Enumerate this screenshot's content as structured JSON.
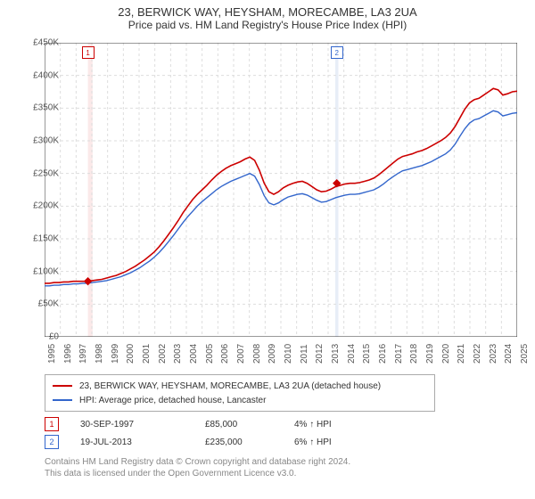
{
  "title": "23, BERWICK WAY, HEYSHAM, MORECAMBE, LA3 2UA",
  "subtitle": "Price paid vs. HM Land Registry's House Price Index (HPI)",
  "chart": {
    "type": "line",
    "background_color": "#ffffff",
    "grid_color": "#dddddd",
    "axis_color": "#333333",
    "ylim": [
      0,
      450000
    ],
    "ytick_step": 50000,
    "ytick_prefix": "£",
    "ytick_suffix": "K",
    "ytick_divisor": 1000,
    "x_years": [
      1995,
      1996,
      1997,
      1998,
      1999,
      2000,
      2001,
      2002,
      2003,
      2004,
      2005,
      2006,
      2007,
      2008,
      2009,
      2010,
      2011,
      2012,
      2013,
      2014,
      2015,
      2016,
      2017,
      2018,
      2019,
      2020,
      2021,
      2022,
      2023,
      2024,
      2025
    ],
    "highlight_bands": [
      {
        "from_year": 1997.75,
        "to_year": 1998.05,
        "color": "#fbe9e9"
      },
      {
        "from_year": 2013.45,
        "to_year": 2013.65,
        "color": "#e8eef7"
      }
    ],
    "marker_badges": [
      {
        "label": "1",
        "year": 1997.75,
        "color": "#cc0000"
      },
      {
        "label": "2",
        "year": 2013.55,
        "color": "#3366cc"
      }
    ],
    "sale_points": [
      {
        "year": 1997.75,
        "value": 85000,
        "color": "#cc0000"
      },
      {
        "year": 2013.55,
        "value": 235000,
        "color": "#cc0000"
      }
    ],
    "series": [
      {
        "name": "property",
        "label": "23, BERWICK WAY, HEYSHAM, MORECAMBE, LA3 2UA (detached house)",
        "color": "#cc0000",
        "line_width": 1.6,
        "data": [
          82,
          82,
          83,
          83,
          84,
          84,
          85,
          85,
          85,
          85,
          86,
          87,
          88,
          90,
          92,
          94,
          97,
          100,
          104,
          108,
          113,
          118,
          124,
          130,
          138,
          147,
          157,
          167,
          178,
          190,
          200,
          210,
          218,
          225,
          232,
          240,
          247,
          253,
          258,
          262,
          265,
          268,
          272,
          275,
          270,
          255,
          235,
          222,
          218,
          222,
          228,
          232,
          235,
          237,
          238,
          235,
          230,
          225,
          222,
          223,
          226,
          230,
          232,
          234,
          235,
          235,
          236,
          238,
          240,
          243,
          248,
          254,
          260,
          266,
          272,
          276,
          278,
          280,
          283,
          285,
          288,
          292,
          296,
          300,
          305,
          312,
          322,
          335,
          348,
          358,
          363,
          365,
          370,
          375,
          380,
          378,
          370,
          372,
          375,
          376
        ]
      },
      {
        "name": "hpi",
        "label": "HPI: Average price, detached house, Lancaster",
        "color": "#3366cc",
        "line_width": 1.4,
        "data": [
          78,
          78,
          79,
          79,
          80,
          80,
          81,
          81,
          82,
          82,
          83,
          84,
          85,
          86,
          88,
          90,
          92,
          95,
          98,
          102,
          106,
          111,
          116,
          122,
          129,
          137,
          146,
          155,
          165,
          175,
          184,
          192,
          200,
          207,
          213,
          219,
          225,
          230,
          234,
          238,
          241,
          244,
          247,
          250,
          246,
          233,
          216,
          205,
          202,
          205,
          210,
          214,
          216,
          218,
          219,
          217,
          213,
          209,
          206,
          207,
          210,
          213,
          215,
          217,
          218,
          218,
          219,
          221,
          223,
          225,
          229,
          234,
          240,
          245,
          250,
          254,
          256,
          258,
          260,
          262,
          265,
          268,
          272,
          276,
          280,
          286,
          295,
          307,
          318,
          327,
          332,
          334,
          338,
          342,
          346,
          344,
          338,
          340,
          342,
          343
        ]
      }
    ]
  },
  "legend": {
    "items": [
      {
        "color": "#cc0000",
        "label": "23, BERWICK WAY, HEYSHAM, MORECAMBE, LA3 2UA (detached house)"
      },
      {
        "color": "#3366cc",
        "label": "HPI: Average price, detached house, Lancaster"
      }
    ]
  },
  "sales": [
    {
      "badge": "1",
      "badge_color": "#cc0000",
      "date": "30-SEP-1997",
      "price": "£85,000",
      "diff": "4% ↑ HPI"
    },
    {
      "badge": "2",
      "badge_color": "#3366cc",
      "date": "19-JUL-2013",
      "price": "£235,000",
      "diff": "6% ↑ HPI"
    }
  ],
  "footnote_line1": "Contains HM Land Registry data © Crown copyright and database right 2024.",
  "footnote_line2": "This data is licensed under the Open Government Licence v3.0."
}
